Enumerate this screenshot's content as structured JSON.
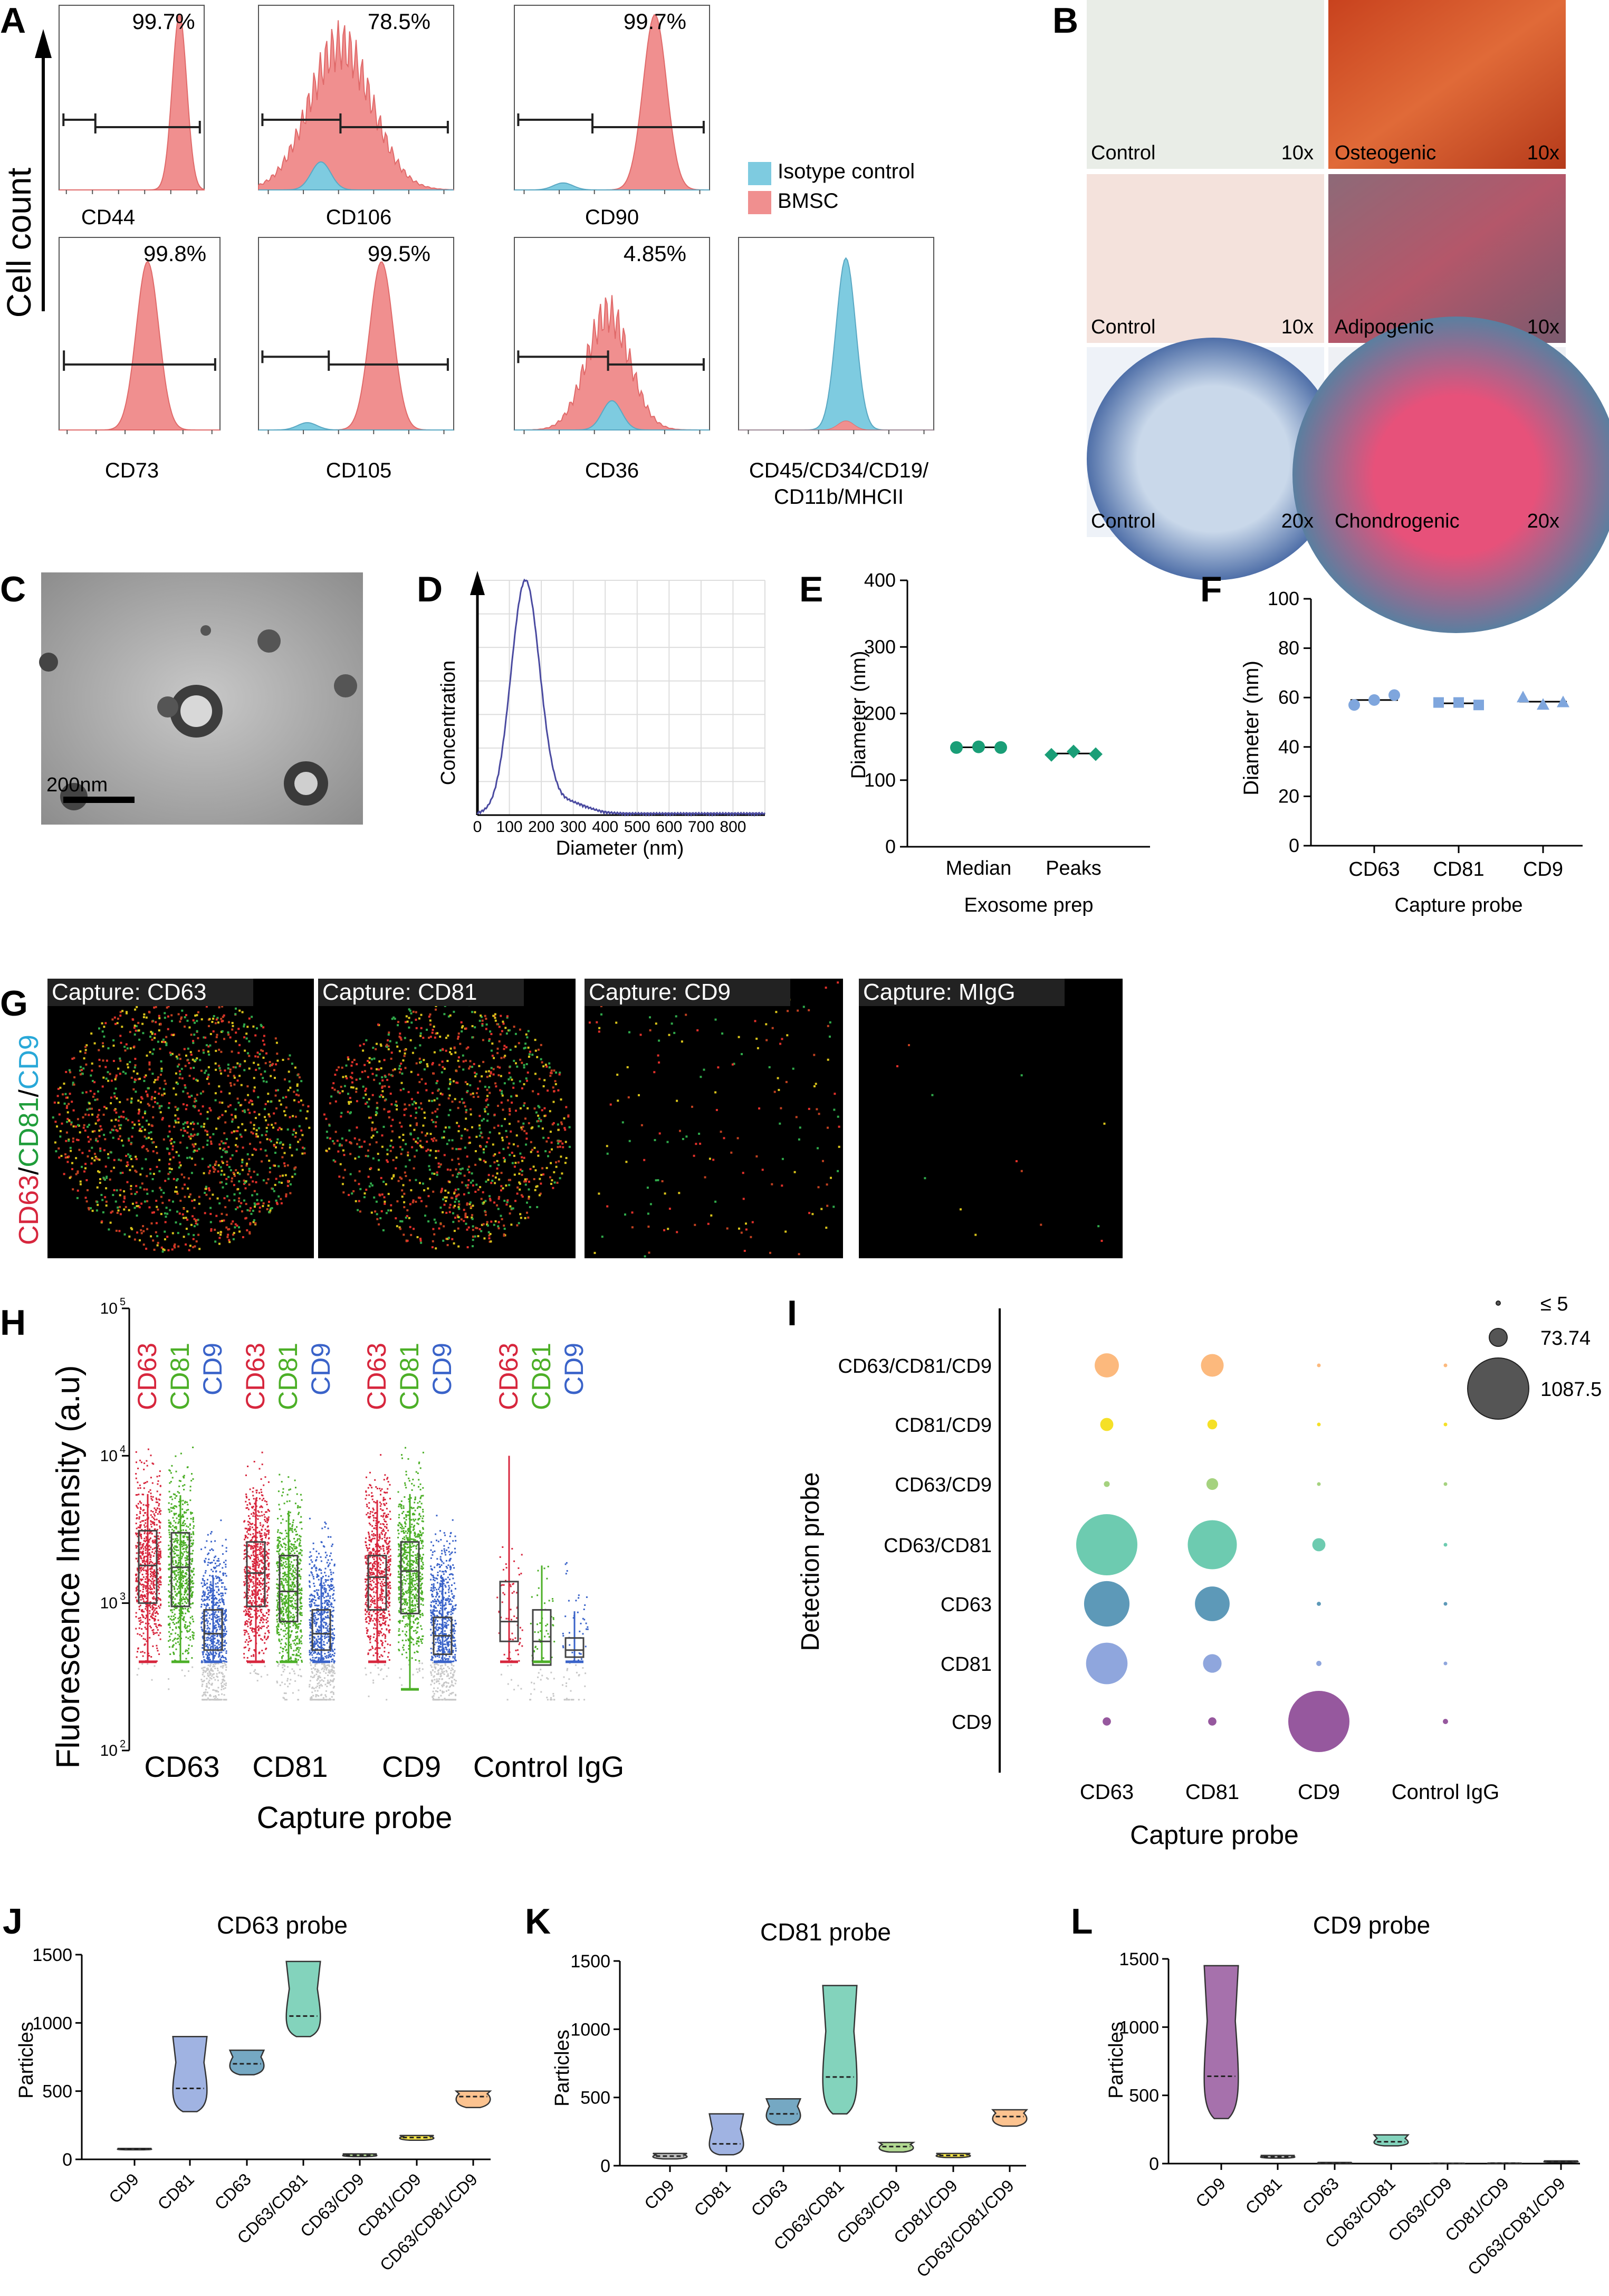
{
  "panels": {
    "A": {
      "letter": "A",
      "ylabel": "Cell count",
      "legend": [
        {
          "label": "Isotype control",
          "color": "#7ecbe0"
        },
        {
          "label": "BMSC",
          "color": "#f08f8f"
        }
      ],
      "plots": [
        {
          "marker": "CD44",
          "pct": "99.7%"
        },
        {
          "marker": "CD106",
          "pct": "78.5%"
        },
        {
          "marker": "CD90",
          "pct": "99.7%"
        },
        {
          "marker": "CD73",
          "pct": "99.8%"
        },
        {
          "marker": "CD105",
          "pct": "99.5%"
        },
        {
          "marker": "CD36",
          "pct": "4.85%"
        },
        {
          "marker": "CD45/CD34/CD19/",
          "marker2": "CD11b/MHCII",
          "pct": ""
        }
      ]
    },
    "B": {
      "letter": "B",
      "tiles": [
        {
          "label": "Control",
          "mag": "10x"
        },
        {
          "label": "Osteogenic",
          "mag": "10x"
        },
        {
          "label": "Control",
          "mag": "10x"
        },
        {
          "label": "Adipogenic",
          "mag": "10x"
        },
        {
          "label": "Control",
          "mag": "20x"
        },
        {
          "label": "Chondrogenic",
          "mag": "20x"
        }
      ]
    },
    "C": {
      "letter": "C",
      "scalebar": "200nm"
    },
    "D": {
      "letter": "D",
      "ylabel": "Concentration",
      "xlabel": "Diameter (nm)",
      "xticks": [
        "0",
        "100",
        "200",
        "300",
        "400",
        "500",
        "600",
        "700",
        "800"
      ]
    },
    "E": {
      "letter": "E",
      "ylabel": "Diameter  (nm)",
      "xlabel": "Exosome prep",
      "categories": [
        "Median",
        "Peaks"
      ],
      "yticks": [
        "0",
        "100",
        "200",
        "300",
        "400"
      ]
    },
    "F": {
      "letter": "F",
      "ylabel": "Diameter  (nm)",
      "xlabel": "Capture probe",
      "categories": [
        "CD63",
        "CD81",
        "CD9"
      ],
      "yticks": [
        "0",
        "20",
        "40",
        "60",
        "80",
        "100"
      ]
    },
    "G": {
      "letter": "G",
      "side_label": [
        "CD63",
        "/",
        "CD81",
        "/",
        "CD9"
      ],
      "captures": [
        "Capture: CD63",
        "Capture: CD81",
        "Capture: CD9",
        "Capture: MIgG"
      ]
    },
    "H": {
      "letter": "H",
      "ylabel": "Fluorescence Intensity (a.u)",
      "xlabel": "Capture probe",
      "groups": [
        "CD63",
        "CD81",
        "CD9",
        "Control IgG"
      ],
      "channels": [
        "CD63",
        "CD81",
        "CD9"
      ],
      "yticks": [
        "10",
        "10",
        "10"
      ],
      "yexp": [
        "2",
        "3",
        "4",
        "5"
      ]
    },
    "I": {
      "letter": "I",
      "ylabel": "Detection probe",
      "xlabel": "Capture probe",
      "rows": [
        "CD63/CD81/CD9",
        "CD81/CD9",
        "CD63/CD9",
        "CD63/CD81",
        "CD63",
        "CD81",
        "CD9"
      ],
      "cols": [
        "CD63",
        "CD81",
        "CD9",
        "Control IgG"
      ],
      "size_legend": [
        "≤ 5",
        "73.74",
        "1087.5"
      ]
    },
    "J": {
      "letter": "J",
      "title": "CD63 probe",
      "ylabel": "Particles",
      "yticks": [
        "0",
        "500",
        "1000",
        "1500"
      ],
      "cats": [
        "CD9",
        "CD81",
        "CD63",
        "CD63/CD81",
        "CD63/CD9",
        "CD81/CD9",
        "CD63/CD81/CD9"
      ]
    },
    "K": {
      "letter": "K",
      "title": "CD81 probe",
      "ylabel": "Particles",
      "yticks": [
        "0",
        "500",
        "1000",
        "1500"
      ],
      "cats": [
        "CD9",
        "CD81",
        "CD63",
        "CD63/CD81",
        "CD63/CD9",
        "CD81/CD9",
        "CD63/CD81/CD9"
      ]
    },
    "L": {
      "letter": "L",
      "title": "CD9 probe",
      "ylabel": "Particles",
      "yticks": [
        "0",
        "500",
        "1000",
        "1500"
      ],
      "cats": [
        "CD9",
        "CD81",
        "CD63",
        "CD63/CD81",
        "CD63/CD9",
        "CD81/CD9",
        "CD63/CD81/CD9"
      ]
    }
  },
  "chart_data": [
    {
      "panel": "E",
      "type": "scatter",
      "categories": [
        "Median",
        "Peaks"
      ],
      "ylim": [
        0,
        400
      ],
      "series": [
        {
          "values": [
            [
              149,
              150,
              149
            ],
            [
              138,
              143,
              139
            ]
          ],
          "color": "#1a9e77"
        }
      ]
    },
    {
      "panel": "F",
      "type": "scatter",
      "categories": [
        "CD63",
        "CD81",
        "CD9"
      ],
      "ylim": [
        0,
        100
      ],
      "series": [
        {
          "values": [
            [
              57,
              59,
              61
            ],
            [
              58,
              58,
              57
            ],
            [
              60,
              57,
              58
            ]
          ],
          "color": "#7fa6dd"
        }
      ]
    },
    {
      "panel": "H",
      "type": "box",
      "groups": [
        "CD63",
        "CD81",
        "CD9",
        "Control IgG"
      ],
      "channels": [
        "CD63",
        "CD81",
        "CD9"
      ],
      "log_scale": true,
      "ylim": [
        100,
        100000
      ],
      "colors": [
        "#d7263d",
        "#4caf27",
        "#3a63c9"
      ],
      "box": [
        [
          [
            1000,
            1800,
            3100,
            400,
            5500
          ],
          [
            950,
            1750,
            3000,
            400,
            5400
          ],
          [
            480,
            620,
            900,
            400,
            1500
          ]
        ],
        [
          [
            950,
            1600,
            2600,
            400,
            5000
          ],
          [
            750,
            1200,
            2100,
            400,
            4200
          ],
          [
            480,
            620,
            900,
            400,
            1500
          ]
        ],
        [
          [
            900,
            1500,
            2100,
            400,
            5000
          ],
          [
            850,
            1650,
            2600,
            260,
            5500
          ],
          [
            450,
            600,
            800,
            400,
            1500
          ]
        ],
        [
          [
            550,
            750,
            1400,
            400,
            10000
          ],
          [
            380,
            550,
            900,
            400,
            1800
          ],
          [
            430,
            480,
            580,
            400,
            880
          ]
        ]
      ]
    },
    {
      "panel": "I",
      "type": "bubble",
      "rows": [
        "CD63/CD81/CD9",
        "CD81/CD9",
        "CD63/CD9",
        "CD63/CD81",
        "CD63",
        "CD81",
        "CD9"
      ],
      "cols": [
        "CD63",
        "CD81",
        "CD9",
        "Control IgG"
      ],
      "values": [
        [
          170,
          150,
          4,
          1
        ],
        [
          50,
          28,
          1,
          0.5
        ],
        [
          10,
          40,
          1,
          0.5
        ],
        [
          1087.5,
          700,
          50,
          1
        ],
        [
          600,
          350,
          5,
          2
        ],
        [
          500,
          100,
          8,
          4
        ],
        [
          20,
          20,
          1087.5,
          8
        ]
      ],
      "row_colors": [
        "#fcb97d",
        "#f5e027",
        "#a5d27f",
        "#6dcbb0",
        "#5d99b8",
        "#8fa6dd",
        "#96589e"
      ]
    },
    {
      "panel": "J",
      "type": "violin",
      "ylim": [
        0,
        1500
      ],
      "categories": [
        "CD9",
        "CD81",
        "CD63",
        "CD63/CD81",
        "CD63/CD9",
        "CD81/CD9",
        "CD63/CD81/CD9"
      ],
      "values": [
        [
          70,
          75,
          80
        ],
        [
          350,
          520,
          900
        ],
        [
          620,
          700,
          800
        ],
        [
          900,
          1050,
          1450
        ],
        [
          20,
          30,
          40
        ],
        [
          140,
          160,
          175
        ],
        [
          380,
          460,
          500
        ]
      ],
      "colors": [
        "#b4b4b4",
        "#8fa6dd",
        "#5d99b8",
        "#6dcbb0",
        "#a5d27f",
        "#f5e027",
        "#fcb97d"
      ]
    },
    {
      "panel": "K",
      "type": "violin",
      "ylim": [
        0,
        1500
      ],
      "categories": [
        "CD9",
        "CD81",
        "CD63",
        "CD63/CD81",
        "CD63/CD9",
        "CD81/CD9",
        "CD63/CD81/CD9"
      ],
      "values": [
        [
          50,
          70,
          90
        ],
        [
          80,
          160,
          380
        ],
        [
          300,
          380,
          490
        ],
        [
          380,
          650,
          1320
        ],
        [
          100,
          140,
          170
        ],
        [
          60,
          75,
          90
        ],
        [
          290,
          360,
          410
        ]
      ],
      "colors": [
        "#b4b4b4",
        "#8fa6dd",
        "#5d99b8",
        "#6dcbb0",
        "#a5d27f",
        "#f5e027",
        "#fcb97d"
      ]
    },
    {
      "panel": "L",
      "type": "violin",
      "ylim": [
        0,
        1500
      ],
      "categories": [
        "CD9",
        "CD81",
        "CD63",
        "CD63/CD81",
        "CD63/CD9",
        "CD81/CD9",
        "CD63/CD81/CD9"
      ],
      "values": [
        [
          330,
          640,
          1450
        ],
        [
          40,
          50,
          60
        ],
        [
          3,
          5,
          8
        ],
        [
          130,
          160,
          210
        ],
        [
          1,
          2,
          3
        ],
        [
          2,
          3,
          4
        ],
        [
          10,
          15,
          20
        ]
      ],
      "colors": [
        "#96589e",
        "#b4b4b4",
        "#5d99b8",
        "#6dcbb0",
        "#a5d27f",
        "#f5e027",
        "#fcb97d"
      ]
    }
  ]
}
